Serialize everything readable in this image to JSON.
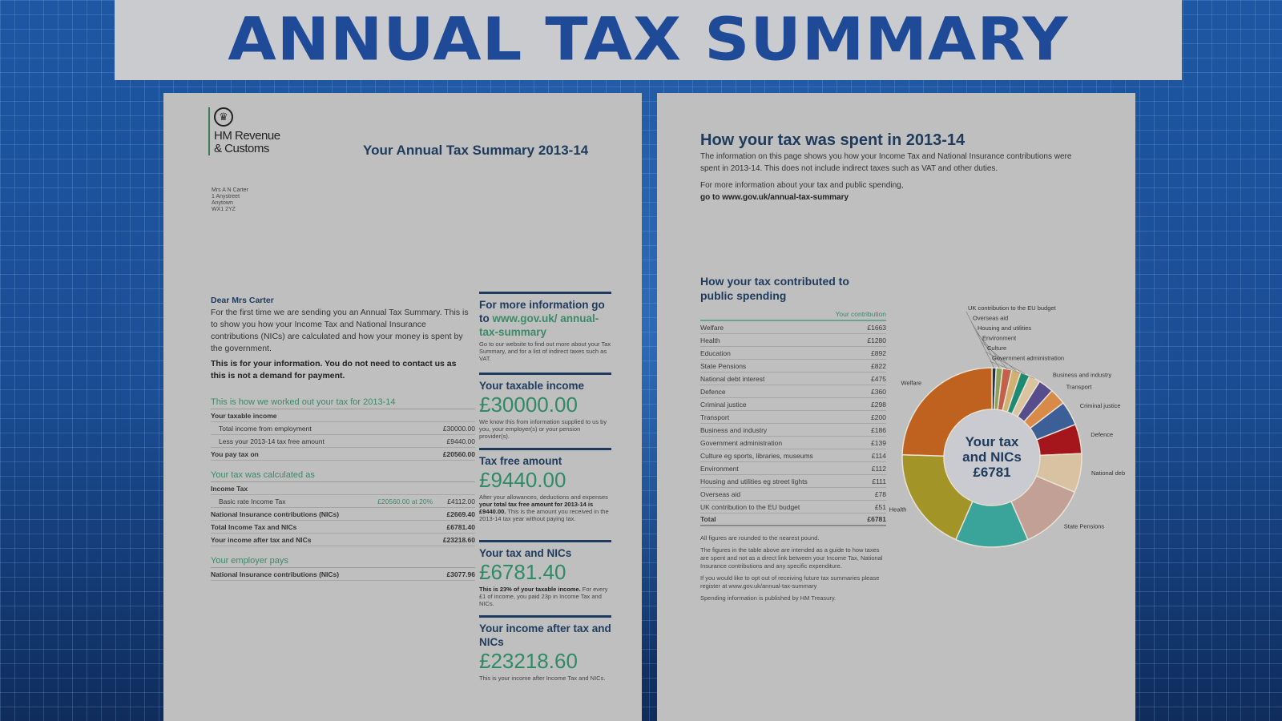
{
  "banner": {
    "title": "ANNUAL TAX SUMMARY"
  },
  "left_page": {
    "logo": {
      "line1": "HM Revenue",
      "line2": "& Customs"
    },
    "title": "Your Annual Tax Summary 2013-14",
    "address": [
      "Mrs A N Carter",
      "1 Anystreet",
      "Anytown",
      "WX1 2YZ"
    ],
    "letter": {
      "salutation": "Dear Mrs Carter",
      "body": "For the first time we are sending you an Annual Tax Summary. This is to show you how your Income Tax and National Insurance contributions (NICs) are calculated and how your money is spent by the government.",
      "notice": "This is for your information. You do not need to contact us as this is not a demand for payment."
    },
    "worked_out": {
      "heading": "This is how we worked out your tax for 2013-14",
      "rows": [
        {
          "label": "Your taxable income",
          "value": "",
          "bold": true
        },
        {
          "label": "Total income from employment",
          "value": "£30000.00",
          "indent": true
        },
        {
          "label": "Less your 2013-14 tax free amount",
          "value": "£9440.00",
          "indent": true
        },
        {
          "label": "You pay tax on",
          "value": "£20560.00",
          "bold": true
        }
      ]
    },
    "calculated": {
      "heading": "Your tax was calculated as",
      "rows": [
        {
          "label": "Income Tax",
          "value": "",
          "bold": true
        },
        {
          "label": "Basic rate Income Tax",
          "mid": "£20560.00 at 20%",
          "value": "£4112.00",
          "indent": true
        },
        {
          "label": "National Insurance contributions (NICs)",
          "value": "£2669.40",
          "bold": true
        },
        {
          "label": "Total Income Tax and NICs",
          "value": "£6781.40",
          "bold": true
        },
        {
          "label": "Your income after tax and NICs",
          "value": "£23218.60",
          "bold": true
        }
      ]
    },
    "employer": {
      "heading": "Your employer pays",
      "rows": [
        {
          "label": "National Insurance contributions (NICs)",
          "value": "£3077.96",
          "bold": true
        }
      ]
    },
    "side_boxes": {
      "more_info": {
        "heading_prefix": "For more information go to ",
        "heading_link": "www.gov.uk/ annual-tax-summary",
        "text": "Go to our website to find out more about your Tax Summary, and for a list of indirect taxes such as VAT."
      },
      "taxable_income": {
        "heading": "Your taxable income",
        "amount": "£30000.00",
        "text": "We know this from information supplied to us by you, your employer(s) or your pension provider(s)."
      },
      "tax_free": {
        "heading": "Tax free amount",
        "amount": "£9440.00",
        "text_a": "After your allowances, deductions and expenses ",
        "text_b": "your total tax free amount for 2013-14 is £9440.00.",
        "text_c": " This is the amount you received in the 2013-14 tax year without paying tax."
      },
      "tax_nics": {
        "heading": "Your tax and NICs",
        "amount": "£6781.40",
        "text_a": "This is 23% of your taxable income.",
        "text_b": " For every £1 of income, you paid 23p in Income Tax and NICs."
      },
      "after_tax": {
        "heading": "Your income after tax and NICs",
        "amount": "£23218.60",
        "text": "This is your income after Income Tax and NICs."
      }
    }
  },
  "right_page": {
    "title": "How your tax was spent in 2013-14",
    "intro": "The information on this page shows you how your Income Tax and National Insurance contributions were spent in 2013-14. This does not include indirect taxes such as VAT and other duties.",
    "more_info_prefix": "For more information about your tax and public spending, ",
    "more_info_link": "go to www.gov.uk/annual-tax-summary",
    "subheading": "How your tax contributed to public spending",
    "column_header": "Your contribution",
    "spending": [
      {
        "label": "Welfare",
        "value": "£1663"
      },
      {
        "label": "Health",
        "value": "£1280"
      },
      {
        "label": "Education",
        "value": "£892"
      },
      {
        "label": "State Pensions",
        "value": "£822"
      },
      {
        "label": "National debt interest",
        "value": "£475"
      },
      {
        "label": "Defence",
        "value": "£360"
      },
      {
        "label": "Criminal justice",
        "value": "£298"
      },
      {
        "label": "Transport",
        "value": "£200"
      },
      {
        "label": "Business and industry",
        "value": "£186"
      },
      {
        "label": "Government administration",
        "value": "£139"
      },
      {
        "label": "Culture eg sports, libraries, museums",
        "value": "£114"
      },
      {
        "label": "Environment",
        "value": "£112"
      },
      {
        "label": "Housing and utilities eg street lights",
        "value": "£111"
      },
      {
        "label": "Overseas aid",
        "value": "£78"
      },
      {
        "label": "UK contribution to the EU budget",
        "value": "£51"
      }
    ],
    "total": {
      "label": "Total",
      "value": "£6781"
    },
    "notes": [
      "All figures are rounded to the nearest pound.",
      "The figures in the table above are intended as a guide to how taxes are spent and not as a direct link between your Income Tax, National Insurance contributions and any specific expenditure.",
      "If you would like to opt out of receiving future tax summaries please register at www.gov.uk/annual-tax-summary",
      "Spending information is published by HM Treasury."
    ],
    "donut_center": {
      "line1": "Your tax",
      "line2": "and NICs",
      "line3": "£6781"
    }
  },
  "chart_data": {
    "type": "pie",
    "title": "How your tax contributed to public spending",
    "center_label": "Your tax and NICs £6781",
    "categories": [
      "Welfare",
      "Health",
      "Education",
      "State Pensions",
      "National debt interest",
      "Defence",
      "Criminal justice",
      "Transport",
      "Business and industry",
      "Government administration",
      "Culture",
      "Environment",
      "Housing and utilities",
      "Overseas aid",
      "UK contribution to the EU budget"
    ],
    "values": [
      1663,
      1280,
      892,
      822,
      475,
      360,
      298,
      200,
      186,
      139,
      114,
      112,
      111,
      78,
      51
    ],
    "colors": [
      "#c0621f",
      "#a39428",
      "#3aa39a",
      "#c2a096",
      "#d8c2a2",
      "#a5161c",
      "#3c5f98",
      "#d88a48",
      "#574d8c",
      "#d9c49f",
      "#1e8a72",
      "#d2b072",
      "#c2604a",
      "#8ca25a",
      "#1c3550"
    ],
    "slice_labels": [
      "Welfare",
      "Health",
      "Education",
      "State Pensions",
      "National debt interest",
      "Defence",
      "Criminal justice",
      "Transport",
      "Business and industry",
      "Government administration",
      "Culture",
      "Environment",
      "Housing and utilities",
      "Overseas aid",
      "UK contribution to the EU budget"
    ],
    "total": 6781
  }
}
